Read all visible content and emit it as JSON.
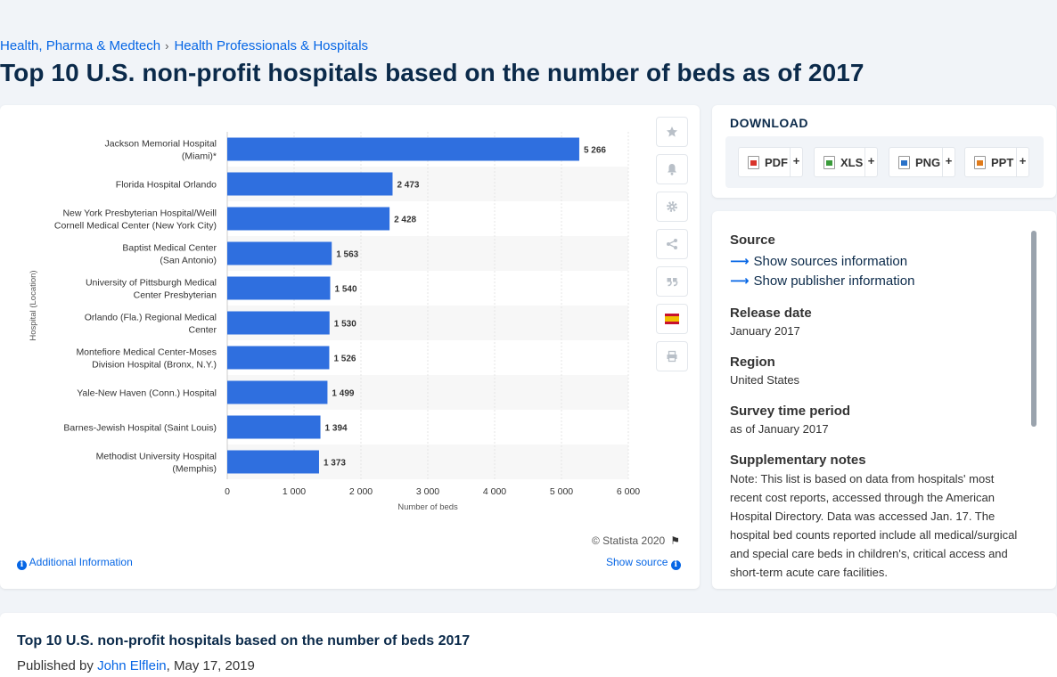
{
  "breadcrumb": {
    "item1": "Health, Pharma & Medtech",
    "separator": "›",
    "item2": "Health Professionals & Hospitals"
  },
  "page_title": "Top 10 U.S. non-profit hospitals based on the number of beds as of 2017",
  "chart_footer": {
    "copyright": "© Statista 2020",
    "additional_info": "Additional Information",
    "show_source": "Show source"
  },
  "tools": [
    "star-icon",
    "bell-icon",
    "gear-icon",
    "share-icon",
    "quote-icon",
    "spanish-flag-icon",
    "print-icon"
  ],
  "download": {
    "title": "DOWNLOAD",
    "buttons": [
      {
        "label": "PDF",
        "plus": "+"
      },
      {
        "label": "XLS",
        "plus": "+"
      },
      {
        "label": "PNG",
        "plus": "+"
      },
      {
        "label": "PPT",
        "plus": "+"
      }
    ]
  },
  "details": {
    "source_h": "Source",
    "show_sources": "Show sources information",
    "show_publisher": "Show publisher information",
    "release_h": "Release date",
    "release_v": "January 2017",
    "region_h": "Region",
    "region_v": "United States",
    "survey_h": "Survey time period",
    "survey_v": "as of January 2017",
    "supp_h": "Supplementary notes",
    "supp_v": "Note: This list is based on data from hospitals' most recent cost reports, accessed through the American Hospital Directory. Data was accessed Jan. 17. The hospital bed counts reported include all medical/surgical and special care beds in children's, critical access and short-term acute care facilities."
  },
  "bottom": {
    "title": "Top 10 U.S. non-profit hospitals based on the number of beds 2017",
    "published_prefix": "Published by",
    "author": "John Elflein",
    "date": ", May 17, 2019"
  },
  "colors": {
    "bar": "#2f6fdf",
    "accent": "#0666e5",
    "title": "#0b2a4a"
  },
  "chart_data": {
    "type": "bar",
    "orientation": "horizontal",
    "categories": [
      [
        "Jackson Memorial Hospital",
        "(Miami)*"
      ],
      [
        "Florida Hospital Orlando"
      ],
      [
        "New York Presbyterian Hospital/Weill",
        "Cornell Medical Center (New York City)"
      ],
      [
        "Baptist Medical Center",
        "(San Antonio)"
      ],
      [
        "University of Pittsburgh Medical",
        "Center Presbyterian"
      ],
      [
        "Orlando (Fla.) Regional Medical",
        "Center"
      ],
      [
        "Montefiore Medical Center-Moses",
        "Division Hospital (Bronx, N.Y.)"
      ],
      [
        "Yale-New Haven (Conn.) Hospital"
      ],
      [
        "Barnes-Jewish Hospital (Saint Louis)"
      ],
      [
        "Methodist University Hospital",
        "(Memphis)"
      ]
    ],
    "values": [
      5266,
      2473,
      2428,
      1563,
      1540,
      1530,
      1526,
      1499,
      1394,
      1373
    ],
    "value_labels": [
      "5 266",
      "2 473",
      "2 428",
      "1 563",
      "1 540",
      "1 530",
      "1 526",
      "1 499",
      "1 394",
      "1 373"
    ],
    "xlabel": "Number of beds",
    "ylabel": "Hospital (Location)",
    "xlim": [
      0,
      6000
    ],
    "xticks": [
      0,
      1000,
      2000,
      3000,
      4000,
      5000,
      6000
    ],
    "xtick_labels": [
      "0",
      "1 000",
      "2 000",
      "3 000",
      "4 000",
      "5 000",
      "6 000"
    ],
    "grid": true
  }
}
